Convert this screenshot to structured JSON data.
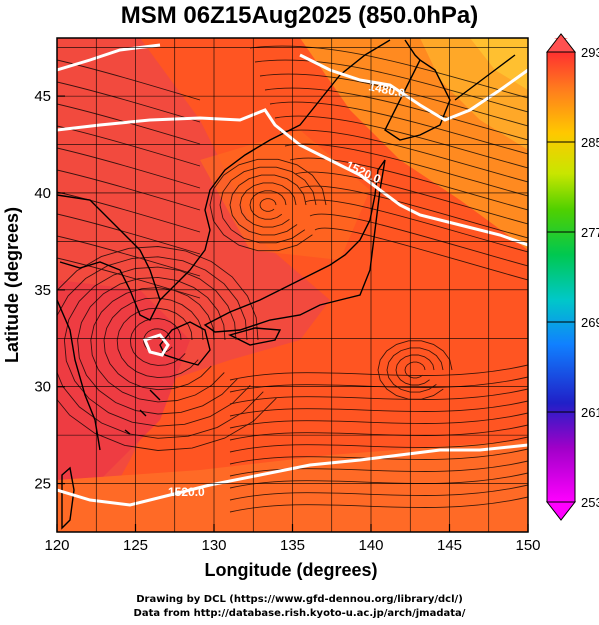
{
  "title": "MSM 06Z15Aug2025 (850.0hPa)",
  "xlabel": "Longitude (degrees)",
  "ylabel": "Latitude  (degrees)",
  "xticks": [
    "120",
    "125",
    "130",
    "135",
    "140",
    "145",
    "150"
  ],
  "yticks": [
    "45",
    "40",
    "35",
    "30",
    "25"
  ],
  "colorbar_ticks": [
    "293",
    "285",
    "277",
    "269",
    "261",
    "253"
  ],
  "contour_labels": [
    "1480.0",
    "1520.0",
    "1520.0"
  ],
  "credits": {
    "line1": "Drawing by DCL (https://www.gfd-dennou.org/library/dcl/)",
    "line2": "Data from http://database.rish.kyoto-u.ac.jp/arch/jmadata/"
  },
  "map": {
    "lon_range": [
      120,
      150
    ],
    "lat_range": [
      22.5,
      48
    ],
    "field": "temperature",
    "units": "K",
    "color_range": [
      253,
      293
    ],
    "colors": {
      "warm": "#ff5a1e",
      "hot": "#ff3a3a",
      "cool": "#ffa020",
      "coast": "#000000",
      "contour": "#ffffff"
    }
  }
}
